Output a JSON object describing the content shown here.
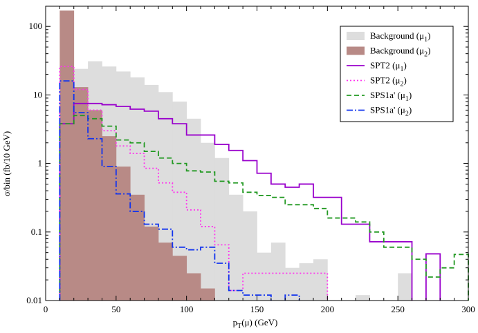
{
  "chart_data": {
    "type": "bar",
    "title": "",
    "xlabel": "p_T(μ) (GeV)",
    "ylabel": "σ/bin  (fb/10 GeV)",
    "xlim": [
      0,
      300
    ],
    "ylim": [
      0.01,
      200
    ],
    "yscale": "log",
    "grid": false,
    "legend_position": "top-right",
    "x_ticks": [
      0,
      50,
      100,
      150,
      200,
      250,
      300
    ],
    "x_tick_labels": [
      "0",
      "50",
      "100",
      "150",
      "200",
      "250",
      "300"
    ],
    "y_ticks": [
      0.01,
      0.1,
      1,
      10,
      100
    ],
    "y_tick_labels": [
      "0.01",
      "0.1",
      "1",
      "10",
      "100"
    ],
    "bin_edges": [
      0,
      10,
      20,
      30,
      40,
      50,
      60,
      70,
      80,
      90,
      100,
      110,
      120,
      130,
      140,
      150,
      160,
      170,
      180,
      190,
      200,
      210,
      220,
      230,
      240,
      250,
      260,
      270,
      280,
      290,
      300
    ],
    "series": [
      {
        "name": "Background (μ1)",
        "style": "filled",
        "color": "#dddddd",
        "values": [
          null,
          5.0,
          24.0,
          31.0,
          26.0,
          22.0,
          18.0,
          14.0,
          11.0,
          8.0,
          4.5,
          2.0,
          1.2,
          0.35,
          0.2,
          0.05,
          0.07,
          0.03,
          0.035,
          0.04,
          null,
          null,
          0.012,
          null,
          null,
          0.025,
          null,
          null,
          null,
          null
        ]
      },
      {
        "name": "Background (μ2)",
        "style": "filled",
        "color": "#b88a86",
        "values": [
          null,
          170,
          13.0,
          6.0,
          2.5,
          0.9,
          0.35,
          0.12,
          0.07,
          0.045,
          0.025,
          0.015,
          null,
          null,
          null,
          null,
          null,
          null,
          null,
          null,
          null,
          null,
          null,
          null,
          null,
          null,
          null,
          null,
          null,
          null
        ]
      },
      {
        "name": "SPT2 (μ1)",
        "style": "solid",
        "color": "#9900cc",
        "values": [
          null,
          3.8,
          7.5,
          7.5,
          7.2,
          6.8,
          6.2,
          5.8,
          4.5,
          3.8,
          2.6,
          2.6,
          1.9,
          1.55,
          1.1,
          0.72,
          0.5,
          0.45,
          0.5,
          0.32,
          0.32,
          0.13,
          0.13,
          0.072,
          0.072,
          0.072,
          null,
          0.048,
          null,
          null
        ]
      },
      {
        "name": "SPT2 (μ2)",
        "style": "dotted",
        "color": "#ff33ee",
        "values": [
          null,
          26.0,
          12.0,
          6.0,
          3.0,
          1.8,
          1.4,
          0.85,
          0.52,
          0.38,
          0.21,
          0.12,
          0.065,
          0.014,
          0.025,
          0.025,
          0.025,
          0.025,
          0.025,
          0.025,
          null,
          null,
          null,
          null,
          null,
          null,
          null,
          null,
          null,
          null
        ]
      },
      {
        "name": "SPS1a' (μ1)",
        "style": "dashed",
        "color": "#229922",
        "values": [
          null,
          3.8,
          5.0,
          4.5,
          3.5,
          2.2,
          2.0,
          1.5,
          1.2,
          1.0,
          0.78,
          0.75,
          0.55,
          0.52,
          0.38,
          0.34,
          0.32,
          0.25,
          0.25,
          0.22,
          0.16,
          0.16,
          0.14,
          0.1,
          0.06,
          0.06,
          0.04,
          0.022,
          0.03,
          0.047
        ]
      },
      {
        "name": "SPS1a' (μ2)",
        "style": "dashdot",
        "color": "#1133ee",
        "values": [
          null,
          16.0,
          5.5,
          2.3,
          0.9,
          0.36,
          0.2,
          0.13,
          0.11,
          0.06,
          0.055,
          0.06,
          0.035,
          0.014,
          0.012,
          0.012,
          null,
          0.012,
          null,
          null,
          null,
          null,
          null,
          null,
          null,
          null,
          null,
          null,
          null,
          null
        ]
      }
    ]
  }
}
